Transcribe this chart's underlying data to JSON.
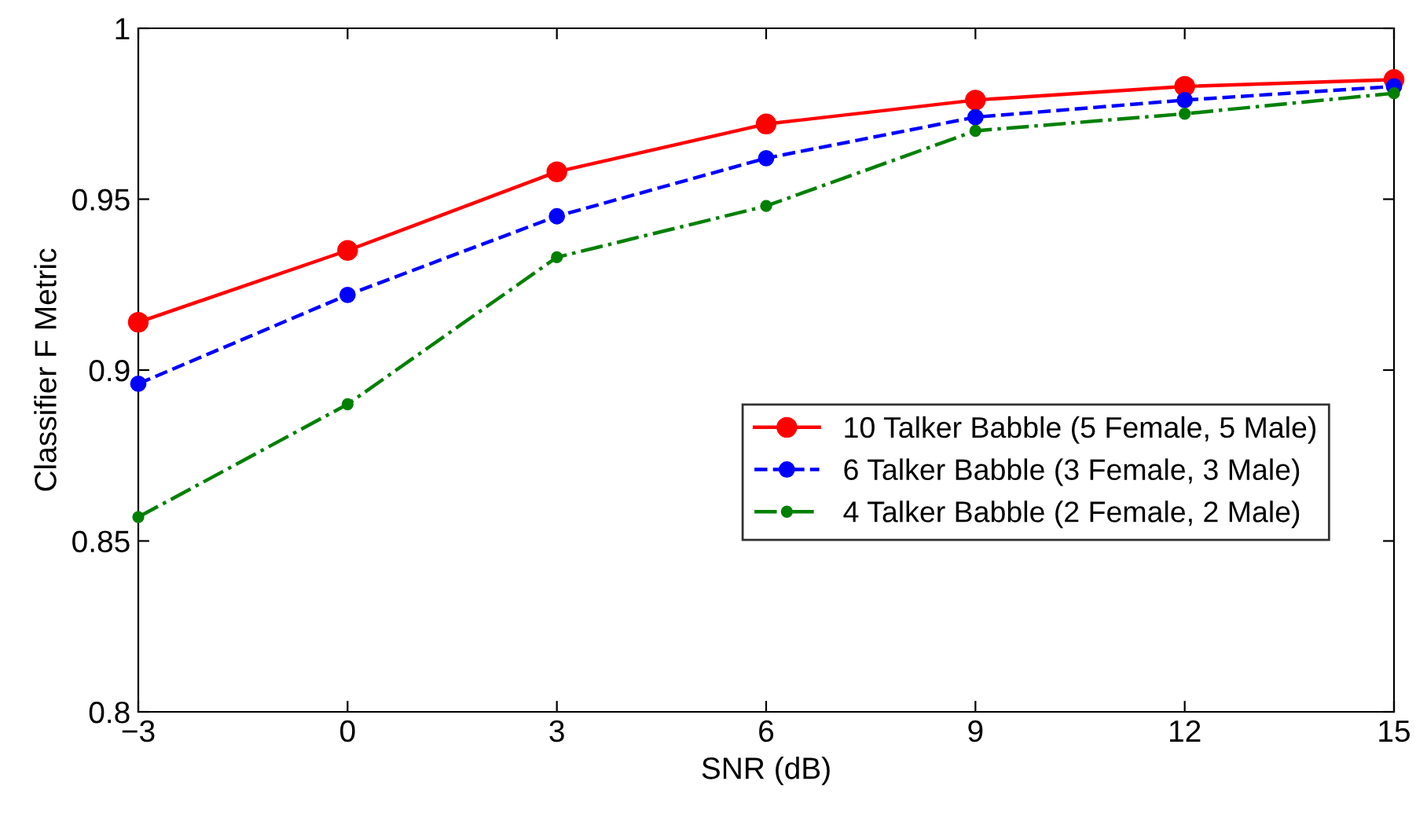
{
  "chart_data": {
    "type": "line",
    "xlabel": "SNR (dB)",
    "ylabel": "Classifier F Metric",
    "x": [
      -3,
      0,
      3,
      6,
      9,
      12,
      15
    ],
    "series": [
      {
        "name": "10 Talker Babble (5 Female, 5 Male)",
        "color": "#ff0000",
        "line_style": "solid",
        "values": [
          0.914,
          0.935,
          0.958,
          0.972,
          0.979,
          0.983,
          0.985
        ]
      },
      {
        "name": "6 Talker Babble (3 Female, 3 Male)",
        "color": "#0000ff",
        "line_style": "dashed",
        "values": [
          0.896,
          0.922,
          0.945,
          0.962,
          0.974,
          0.979,
          0.983
        ]
      },
      {
        "name": "4 Talker Babble (2 Female, 2 Male)",
        "color": "#008000",
        "line_style": "dashdot",
        "values": [
          0.857,
          0.89,
          0.933,
          0.948,
          0.97,
          0.975,
          0.981
        ]
      }
    ],
    "xlim": [
      -3,
      15
    ],
    "xticks": [
      {
        "value": -3,
        "label": "−3"
      },
      0,
      3,
      6,
      9,
      12,
      15
    ],
    "ylim": [
      0.8,
      1
    ],
    "yticks": [
      0.8,
      0.85,
      0.9,
      0.95,
      1
    ],
    "marker": "circle",
    "grid": false,
    "legend": "bottom right"
  }
}
